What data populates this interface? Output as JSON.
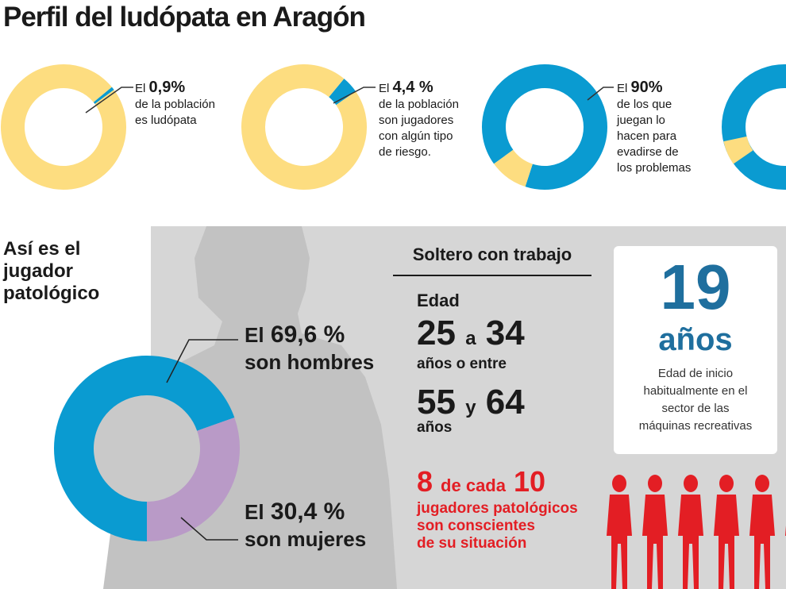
{
  "title": "Perfil del ludópata en Aragón",
  "colors": {
    "blue": "#0a9bd1",
    "yellow": "#fddd80",
    "purple": "#b99ac7",
    "red": "#e31e24",
    "darkblue": "#1f6f9e"
  },
  "stats": [
    {
      "prefix": "El ",
      "value": "0,9%",
      "lines": [
        "de la población",
        "es ludópata"
      ]
    },
    {
      "prefix": "El ",
      "value": "4,4 %",
      "lines": [
        "de la población",
        "son jugadores",
        "con algún tipo",
        "de riesgo."
      ]
    },
    {
      "prefix": "El ",
      "value": "90%",
      "lines": [
        "de los que",
        "juegan lo",
        "hacen para",
        "evadirse de",
        "los problemas"
      ]
    }
  ],
  "profile": {
    "heading": [
      "Así es el",
      "jugador",
      "patológico"
    ],
    "men": {
      "prefix": "El",
      "value": "69,6 %",
      "label": "son hombres"
    },
    "women": {
      "prefix": "El",
      "value": "30,4 %",
      "label": "son mujeres"
    }
  },
  "status": "Soltero con trabajo",
  "age": {
    "label": "Edad",
    "r1_from": "25",
    "r1_sep": "a",
    "r1_to": "34",
    "or_text": "años o entre",
    "r2_from": "55",
    "r2_sep": "y",
    "r2_to": "64",
    "unit": "años"
  },
  "start_age": {
    "number": "19",
    "unit": "años",
    "desc": [
      "Edad de inicio",
      "habitualmente en el",
      "sector de las",
      "máquinas recreativas"
    ]
  },
  "aware": {
    "num": "8",
    "mid": "de cada",
    "den": "10",
    "lines": [
      "jugadores patológicos",
      "son conscientes",
      "de su situación"
    ]
  },
  "chart_data": [
    {
      "type": "pie",
      "series": [
        {
          "values": [
            0.9,
            99.1
          ]
        }
      ]
    },
    {
      "type": "pie",
      "series": [
        {
          "values": [
            4.4,
            95.6
          ]
        }
      ]
    },
    {
      "type": "pie",
      "series": [
        {
          "values": [
            90,
            10
          ]
        }
      ]
    },
    {
      "type": "pie",
      "series": [
        {
          "values": [
            69.6,
            30.4
          ]
        }
      ],
      "categories": [
        "son hombres",
        "son mujeres"
      ]
    }
  ]
}
